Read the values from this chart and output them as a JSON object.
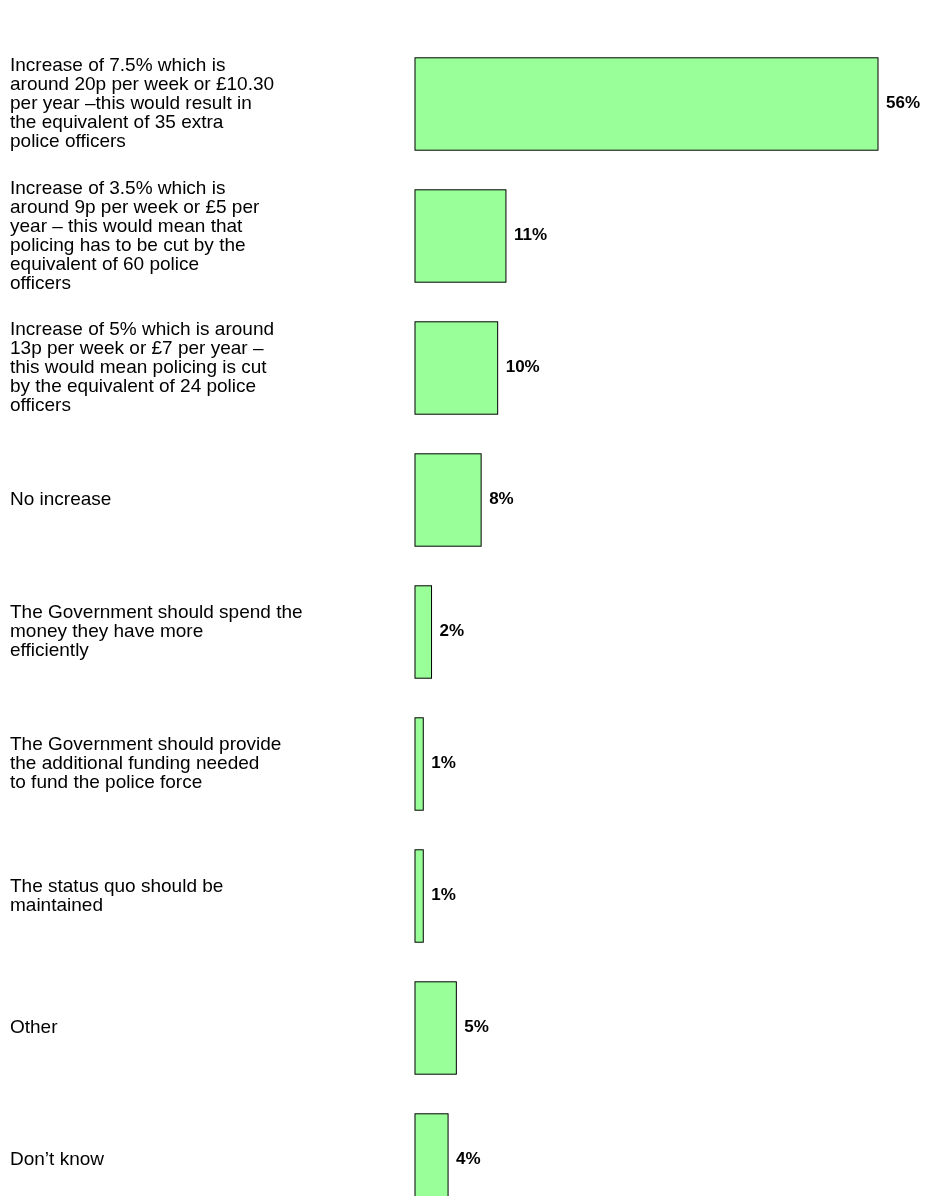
{
  "chart_data": {
    "type": "bar",
    "orientation": "horizontal",
    "value_labels": [
      "56%",
      "11%",
      "10%",
      "8%",
      "2%",
      "1%",
      "1%",
      "5%",
      "4%"
    ],
    "color": "#99ff99",
    "categories": [
      "Increase of 7.5% which is around 20p per week or £10.30 per year –this would result in the equivalent of 35 extra police officers",
      "Increase of 3.5% which is around 9p per week or £5 per year – this would mean that policing has to be cut by the equivalent of 60 police officers",
      "Increase of 5% which is around 13p per week or £7 per year – this would mean policing is cut by the equivalent of 24 police officers",
      "No increase",
      "The Government should spend the money they have more efficiently",
      "The Government should provide the additional funding needed to fund the police force",
      "The status quo should be maintained",
      "Other",
      "Don’t know"
    ],
    "values": [
      56,
      11,
      10,
      8,
      2,
      1,
      1,
      5,
      4
    ]
  }
}
